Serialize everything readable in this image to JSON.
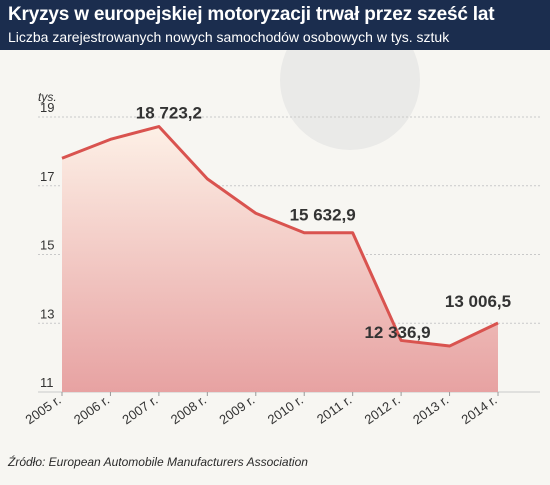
{
  "header": {
    "title": "Kryzys w europejskiej motoryzacji trwał przez sześć lat",
    "subtitle": "Liczba zarejestrowanych nowych samochodów osobowych w tys. sztuk"
  },
  "source": "Źródło: European Automobile Manufacturers Association",
  "colors": {
    "line": "#d9534f",
    "header_bg": "#1b2d4e",
    "fill_top": "#fdf0e6",
    "fill_bottom": "#e7a2a2",
    "background": "#f7f6f2"
  },
  "chart_data": {
    "type": "area",
    "title": "Kryzys w europejskiej motoryzacji trwał przez sześć lat",
    "subtitle": "Liczba zarejestrowanych nowych samochodów osobowych w tys. sztuk",
    "unit_label": "tys.",
    "categories": [
      "2005 r.",
      "2006 r.",
      "2007 r.",
      "2008 r.",
      "2009 r.",
      "2010 r.",
      "2011 r.",
      "2012 r.",
      "2013 r.",
      "2014 r."
    ],
    "values": [
      17.8,
      18.35,
      18.7232,
      17.2,
      16.2,
      15.6329,
      15.6329,
      12.5,
      12.3369,
      13.0065
    ],
    "ylim": [
      11,
      19
    ],
    "yticks": [
      11,
      13,
      15,
      17,
      19
    ],
    "grid": "horizontal",
    "annotations": [
      {
        "index": 2,
        "label": "18 723,2"
      },
      {
        "index": 6,
        "label": "15 632,9"
      },
      {
        "index": 8,
        "label": "12 336,9"
      },
      {
        "index": 9,
        "label": "13 006,5"
      }
    ]
  }
}
